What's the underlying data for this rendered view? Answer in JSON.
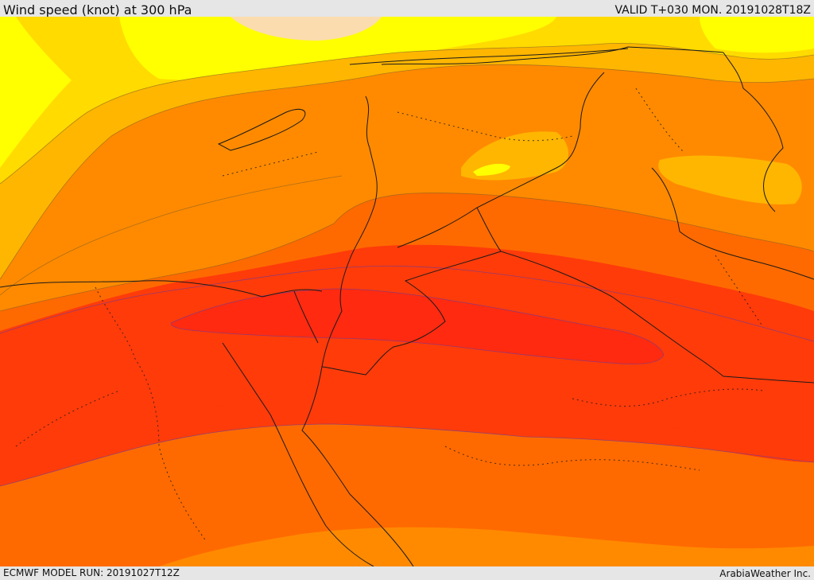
{
  "header": {
    "title": "Wind speed (knot) at 300 hPa",
    "valid": "VALID T+030 MON. 20191028T18Z"
  },
  "footer": {
    "model_run": "ECMWF MODEL RUN: 20191027T12Z",
    "provider": "ArabiaWeather Inc."
  },
  "bands": [
    {
      "name": "band-lightest",
      "color": "#fbdcae"
    },
    {
      "name": "band-yellow",
      "color": "#ffff00"
    },
    {
      "name": "band-gold",
      "color": "#ffdb00"
    },
    {
      "name": "band-amber",
      "color": "#ffb600"
    },
    {
      "name": "band-orange-light",
      "color": "#ff9e00"
    },
    {
      "name": "band-orange",
      "color": "#ff8a00"
    },
    {
      "name": "band-dark-orange",
      "color": "#ff6a00"
    },
    {
      "name": "band-red-orange",
      "color": "#ff5200"
    },
    {
      "name": "band-red",
      "color": "#ff3b0a"
    },
    {
      "name": "band-jet-core",
      "color": "#ff2a10"
    }
  ]
}
